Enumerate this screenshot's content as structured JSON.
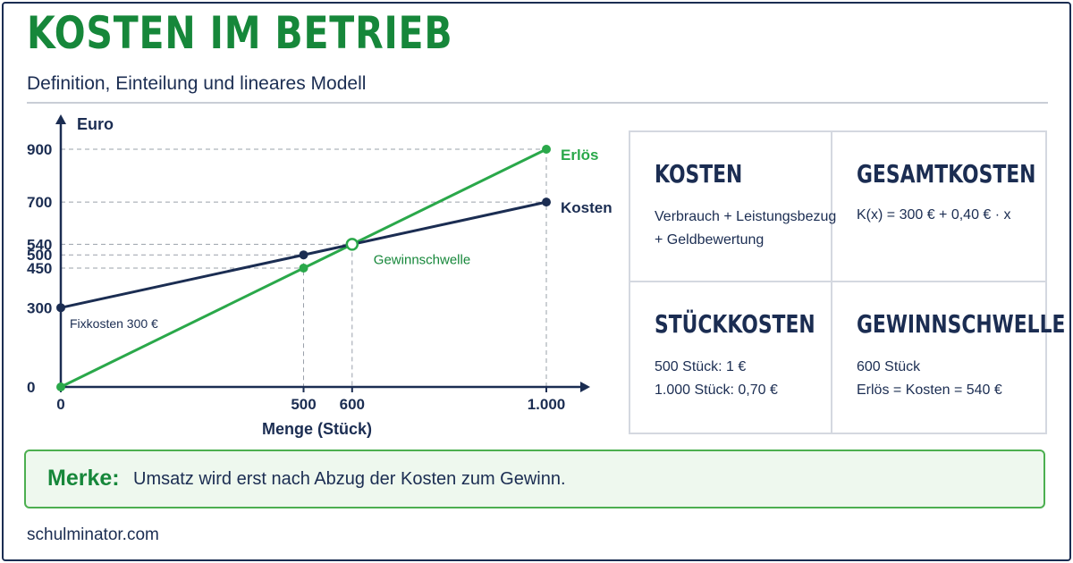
{
  "header": {
    "title": "KOSTEN IM BETRIEB",
    "subtitle": "Definition, Einteilung und lineares Modell"
  },
  "chart_data": {
    "type": "line",
    "xlabel": "Menge (Stück)",
    "ylabel": "Euro",
    "xlim": [
      0,
      1000
    ],
    "ylim": [
      0,
      900
    ],
    "x_ticks": [
      {
        "value": 0,
        "label": "0"
      },
      {
        "value": 500,
        "label": "500"
      },
      {
        "value": 600,
        "label": "600"
      },
      {
        "value": 1000,
        "label": "1.000"
      }
    ],
    "y_ticks": [
      {
        "value": 0,
        "label": "0"
      },
      {
        "value": 300,
        "label": "300"
      },
      {
        "value": 450,
        "label": "450"
      },
      {
        "value": 500,
        "label": "500"
      },
      {
        "value": 540,
        "label": "540"
      },
      {
        "value": 700,
        "label": "700"
      },
      {
        "value": 900,
        "label": "900"
      }
    ],
    "series": [
      {
        "name": "Erlös",
        "color": "#2aa84a",
        "x": [
          0,
          500,
          1000
        ],
        "y": [
          0,
          450,
          900
        ]
      },
      {
        "name": "Kosten",
        "color": "#1b2d52",
        "x": [
          0,
          500,
          1000
        ],
        "y": [
          300,
          500,
          700
        ]
      }
    ],
    "annotations": {
      "fixkosten": "Fixkosten 300 €",
      "gewinnschwelle": "Gewinnschwelle",
      "breakeven": {
        "x": 600,
        "y": 540
      }
    },
    "guides": [
      {
        "x": 500,
        "y": 450
      },
      {
        "x": 500,
        "y": 500
      },
      {
        "x": 600,
        "y": 540
      },
      {
        "x": 1000,
        "y": 700
      },
      {
        "x": 1000,
        "y": 900
      }
    ]
  },
  "cards": [
    {
      "title": "KOSTEN",
      "lines": [
        "Verbrauch + Leistungsbezug",
        "+ Geldbewertung"
      ]
    },
    {
      "title": "GESAMTKOSTEN",
      "lines": [
        "K(x) = 300 € + 0,40 € · x"
      ]
    },
    {
      "title": "STÜCKKOSTEN",
      "lines": [
        "500 Stück: 1 €",
        "1.000 Stück: 0,70 €"
      ]
    },
    {
      "title": "GEWINNSCHWELLE",
      "lines": [
        "600 Stück",
        "Erlös = Kosten = 540 €"
      ]
    }
  ],
  "merke": {
    "label": "Merke:",
    "text": "Umsatz wird erst nach Abzug der Kosten zum Gewinn."
  },
  "footer": "schulminator.com",
  "colors": {
    "green": "#16873a",
    "navy": "#1b2d52",
    "line_green": "#2aa84a"
  }
}
